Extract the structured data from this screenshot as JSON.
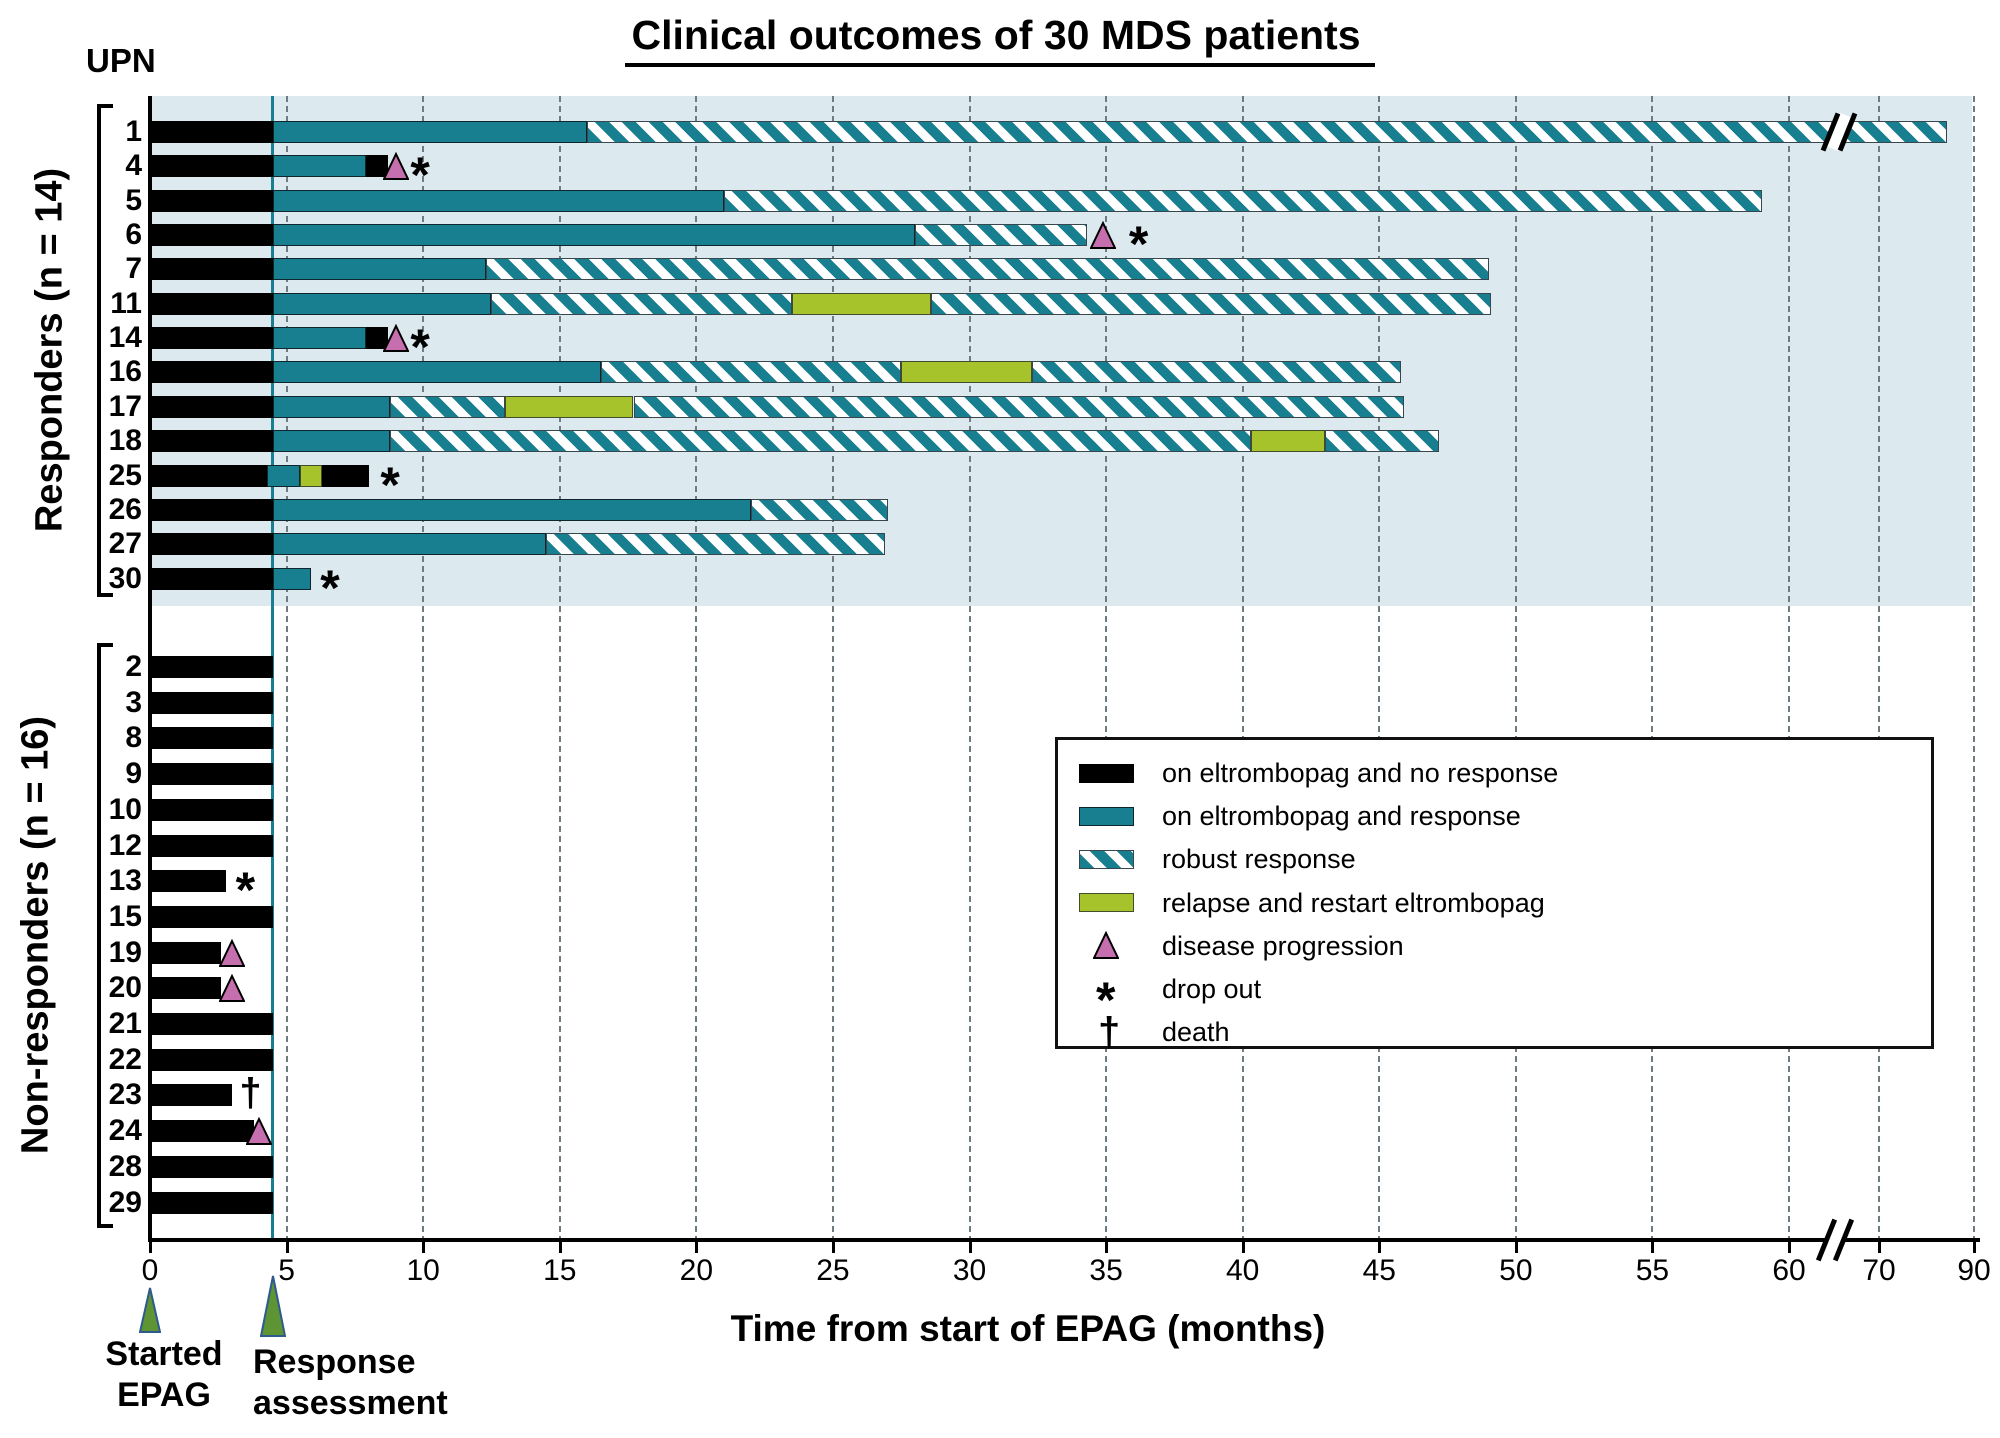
{
  "title": "Clinical outcomes of 30 MDS patients",
  "upn_label": "UPN",
  "colors": {
    "teal": "#187f91",
    "relapse_green": "#a6c32b",
    "progression_pink": "#c66fae",
    "responders_bg": "#dce9ef",
    "arrow_green": "#5f9434",
    "arrow_border": "#2d5b8e"
  },
  "chart_data": {
    "type": "bar",
    "subtype": "swimmer-plot",
    "title": "Clinical outcomes of 30 MDS patients",
    "xlabel": "Time from start of EPAG (months)",
    "x_unit": "months",
    "x_ticks": [
      0,
      5,
      10,
      15,
      20,
      25,
      30,
      35,
      40,
      45,
      50,
      55,
      60,
      70,
      90
    ],
    "x_gridlines": [
      5,
      10,
      15,
      20,
      25,
      30,
      35,
      40,
      45,
      50,
      55,
      60,
      70,
      90
    ],
    "axis_break_after_month": 60,
    "response_assessment_month": 4.5,
    "annotations": [
      {
        "label": "Started\nEPAG",
        "month": 0
      },
      {
        "label": "Response\nassessment",
        "month": 4.5
      }
    ],
    "legend": [
      {
        "key": "no_response",
        "swatch": "black-bar",
        "label": "on eltrombopag and no response"
      },
      {
        "key": "response",
        "swatch": "teal-bar",
        "label": "on eltrombopag and response"
      },
      {
        "key": "robust",
        "swatch": "striped-bar",
        "label": "robust response"
      },
      {
        "key": "relapse",
        "swatch": "green-bar",
        "label": "relapse and restart eltrombopag"
      },
      {
        "key": "progression",
        "swatch": "pink-triangle",
        "label": "disease progression"
      },
      {
        "key": "dropout",
        "swatch": "asterisk",
        "label": "drop out"
      },
      {
        "key": "death",
        "swatch": "dagger",
        "label": "death"
      }
    ],
    "groups": [
      {
        "label": "Responders (n = 14)",
        "background": "#dce9ef",
        "patients": [
          {
            "upn": "1",
            "segments": [
              {
                "type": "no_response",
                "start": 0,
                "end": 4.5
              },
              {
                "type": "response",
                "start": 4.5,
                "end": 16
              },
              {
                "type": "robust",
                "start": 16,
                "end": 84.3
              }
            ],
            "markers": [],
            "bar_break_month": 65.5
          },
          {
            "upn": "4",
            "segments": [
              {
                "type": "no_response",
                "start": 0,
                "end": 4.5
              },
              {
                "type": "response",
                "start": 4.5,
                "end": 7.9
              },
              {
                "type": "no_response",
                "start": 7.9,
                "end": 8.7
              }
            ],
            "markers": [
              {
                "type": "progression",
                "month": 9.0
              },
              {
                "type": "dropout",
                "month": 9.9
              }
            ]
          },
          {
            "upn": "5",
            "segments": [
              {
                "type": "no_response",
                "start": 0,
                "end": 4.5
              },
              {
                "type": "response",
                "start": 4.5,
                "end": 21
              },
              {
                "type": "robust",
                "start": 21,
                "end": 59
              }
            ],
            "markers": []
          },
          {
            "upn": "6",
            "segments": [
              {
                "type": "no_response",
                "start": 0,
                "end": 4.5
              },
              {
                "type": "response",
                "start": 4.5,
                "end": 28
              },
              {
                "type": "robust",
                "start": 28,
                "end": 34.3
              }
            ],
            "markers": [
              {
                "type": "progression",
                "month": 34.9
              },
              {
                "type": "dropout",
                "month": 36.2
              }
            ]
          },
          {
            "upn": "7",
            "segments": [
              {
                "type": "no_response",
                "start": 0,
                "end": 4.5
              },
              {
                "type": "response",
                "start": 4.5,
                "end": 12.3
              },
              {
                "type": "robust",
                "start": 12.3,
                "end": 49
              }
            ],
            "markers": []
          },
          {
            "upn": "11",
            "segments": [
              {
                "type": "no_response",
                "start": 0,
                "end": 4.5
              },
              {
                "type": "response",
                "start": 4.5,
                "end": 12.5
              },
              {
                "type": "robust",
                "start": 12.5,
                "end": 23.5
              },
              {
                "type": "relapse",
                "start": 23.5,
                "end": 28.6
              },
              {
                "type": "robust",
                "start": 28.6,
                "end": 49.1
              }
            ],
            "markers": []
          },
          {
            "upn": "14",
            "segments": [
              {
                "type": "no_response",
                "start": 0,
                "end": 4.5
              },
              {
                "type": "response",
                "start": 4.5,
                "end": 7.9
              },
              {
                "type": "no_response",
                "start": 7.9,
                "end": 8.7
              }
            ],
            "markers": [
              {
                "type": "progression",
                "month": 9.0
              },
              {
                "type": "dropout",
                "month": 9.9
              }
            ]
          },
          {
            "upn": "16",
            "segments": [
              {
                "type": "no_response",
                "start": 0,
                "end": 4.5
              },
              {
                "type": "response",
                "start": 4.5,
                "end": 16.5
              },
              {
                "type": "robust",
                "start": 16.5,
                "end": 27.5
              },
              {
                "type": "relapse",
                "start": 27.5,
                "end": 32.3
              },
              {
                "type": "robust",
                "start": 32.3,
                "end": 45.8
              }
            ],
            "markers": []
          },
          {
            "upn": "17",
            "segments": [
              {
                "type": "no_response",
                "start": 0,
                "end": 4.5
              },
              {
                "type": "response",
                "start": 4.5,
                "end": 8.8
              },
              {
                "type": "robust",
                "start": 8.8,
                "end": 13
              },
              {
                "type": "relapse",
                "start": 13,
                "end": 17.7
              },
              {
                "type": "robust",
                "start": 17.7,
                "end": 45.9
              }
            ],
            "markers": []
          },
          {
            "upn": "18",
            "segments": [
              {
                "type": "no_response",
                "start": 0,
                "end": 4.5
              },
              {
                "type": "response",
                "start": 4.5,
                "end": 8.8
              },
              {
                "type": "robust",
                "start": 8.8,
                "end": 40.3
              },
              {
                "type": "relapse",
                "start": 40.3,
                "end": 43
              },
              {
                "type": "robust",
                "start": 43,
                "end": 47.2
              }
            ],
            "markers": []
          },
          {
            "upn": "25",
            "segments": [
              {
                "type": "no_response",
                "start": 0,
                "end": 4.3
              },
              {
                "type": "response",
                "start": 4.3,
                "end": 5.5
              },
              {
                "type": "relapse",
                "start": 5.5,
                "end": 6.3
              },
              {
                "type": "no_response",
                "start": 6.3,
                "end": 8.0
              }
            ],
            "markers": [
              {
                "type": "dropout",
                "month": 8.8
              }
            ]
          },
          {
            "upn": "26",
            "segments": [
              {
                "type": "no_response",
                "start": 0,
                "end": 4.5
              },
              {
                "type": "response",
                "start": 4.5,
                "end": 22
              },
              {
                "type": "robust",
                "start": 22,
                "end": 27
              }
            ],
            "markers": []
          },
          {
            "upn": "27",
            "segments": [
              {
                "type": "no_response",
                "start": 0,
                "end": 4.5
              },
              {
                "type": "response",
                "start": 4.5,
                "end": 14.5
              },
              {
                "type": "robust",
                "start": 14.5,
                "end": 26.9
              }
            ],
            "markers": []
          },
          {
            "upn": "30",
            "segments": [
              {
                "type": "no_response",
                "start": 0,
                "end": 4.5
              },
              {
                "type": "response",
                "start": 4.5,
                "end": 5.9
              }
            ],
            "markers": [
              {
                "type": "dropout",
                "month": 6.6
              }
            ]
          }
        ]
      },
      {
        "label": "Non-responders (n = 16)",
        "background": "#ffffff",
        "patients": [
          {
            "upn": "2",
            "segments": [
              {
                "type": "no_response",
                "start": 0,
                "end": 4.5
              }
            ],
            "markers": []
          },
          {
            "upn": "3",
            "segments": [
              {
                "type": "no_response",
                "start": 0,
                "end": 4.5
              }
            ],
            "markers": []
          },
          {
            "upn": "8",
            "segments": [
              {
                "type": "no_response",
                "start": 0,
                "end": 4.5
              }
            ],
            "markers": []
          },
          {
            "upn": "9",
            "segments": [
              {
                "type": "no_response",
                "start": 0,
                "end": 4.5
              }
            ],
            "markers": []
          },
          {
            "upn": "10",
            "segments": [
              {
                "type": "no_response",
                "start": 0,
                "end": 4.5
              }
            ],
            "markers": []
          },
          {
            "upn": "12",
            "segments": [
              {
                "type": "no_response",
                "start": 0,
                "end": 4.5
              }
            ],
            "markers": []
          },
          {
            "upn": "13",
            "segments": [
              {
                "type": "no_response",
                "start": 0,
                "end": 2.8
              }
            ],
            "markers": [
              {
                "type": "dropout",
                "month": 3.5
              }
            ]
          },
          {
            "upn": "15",
            "segments": [
              {
                "type": "no_response",
                "start": 0,
                "end": 4.5
              }
            ],
            "markers": []
          },
          {
            "upn": "19",
            "segments": [
              {
                "type": "no_response",
                "start": 0,
                "end": 2.6
              }
            ],
            "markers": [
              {
                "type": "progression",
                "month": 3.0
              }
            ]
          },
          {
            "upn": "20",
            "segments": [
              {
                "type": "no_response",
                "start": 0,
                "end": 2.6
              }
            ],
            "markers": [
              {
                "type": "progression",
                "month": 3.0
              }
            ]
          },
          {
            "upn": "21",
            "segments": [
              {
                "type": "no_response",
                "start": 0,
                "end": 4.5
              }
            ],
            "markers": []
          },
          {
            "upn": "22",
            "segments": [
              {
                "type": "no_response",
                "start": 0,
                "end": 4.5
              }
            ],
            "markers": []
          },
          {
            "upn": "23",
            "segments": [
              {
                "type": "no_response",
                "start": 0,
                "end": 3.0
              }
            ],
            "markers": [
              {
                "type": "death",
                "month": 3.6
              }
            ]
          },
          {
            "upn": "24",
            "segments": [
              {
                "type": "no_response",
                "start": 0,
                "end": 3.8
              }
            ],
            "markers": [
              {
                "type": "progression",
                "month": 4.0
              }
            ]
          },
          {
            "upn": "28",
            "segments": [
              {
                "type": "no_response",
                "start": 0,
                "end": 4.5
              }
            ],
            "markers": []
          },
          {
            "upn": "29",
            "segments": [
              {
                "type": "no_response",
                "start": 0,
                "end": 4.5
              }
            ],
            "markers": []
          }
        ]
      }
    ]
  }
}
